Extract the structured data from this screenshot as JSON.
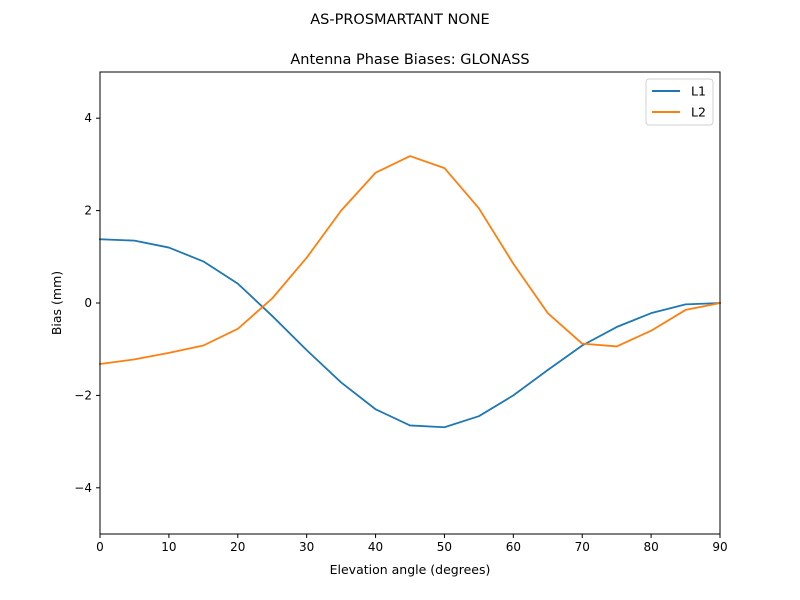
{
  "figure": {
    "suptitle": "AS-PROSMARTANT  NONE"
  },
  "chart_data": {
    "type": "line",
    "title": "Antenna Phase Biases: GLONASS",
    "xlabel": "Elevation angle (degrees)",
    "ylabel": "Bias (mm)",
    "xlim": [
      0,
      90
    ],
    "ylim": [
      -5,
      5
    ],
    "xticks": [
      0,
      10,
      20,
      30,
      40,
      50,
      60,
      70,
      80,
      90
    ],
    "yticks": [
      -4,
      -2,
      0,
      2,
      4
    ],
    "ytick_labels": [
      "−4",
      "−2",
      "0",
      "2",
      "4"
    ],
    "grid": false,
    "legend_position": "top-right",
    "x": [
      0,
      5,
      10,
      15,
      20,
      25,
      30,
      35,
      40,
      45,
      50,
      55,
      60,
      65,
      70,
      75,
      80,
      85,
      90
    ],
    "series": [
      {
        "name": "L1",
        "color": "#1f77b4",
        "values": [
          1.38,
          1.35,
          1.2,
          0.9,
          0.42,
          -0.28,
          -1.02,
          -1.72,
          -2.3,
          -2.65,
          -2.69,
          -2.45,
          -2.0,
          -1.45,
          -0.92,
          -0.52,
          -0.22,
          -0.03,
          0.0
        ]
      },
      {
        "name": "L2",
        "color": "#ff7f0e",
        "values": [
          -1.32,
          -1.22,
          -1.08,
          -0.92,
          -0.56,
          0.1,
          0.98,
          2.0,
          2.82,
          3.18,
          2.92,
          2.05,
          0.85,
          -0.22,
          -0.88,
          -0.94,
          -0.6,
          -0.15,
          0.0
        ]
      }
    ]
  }
}
